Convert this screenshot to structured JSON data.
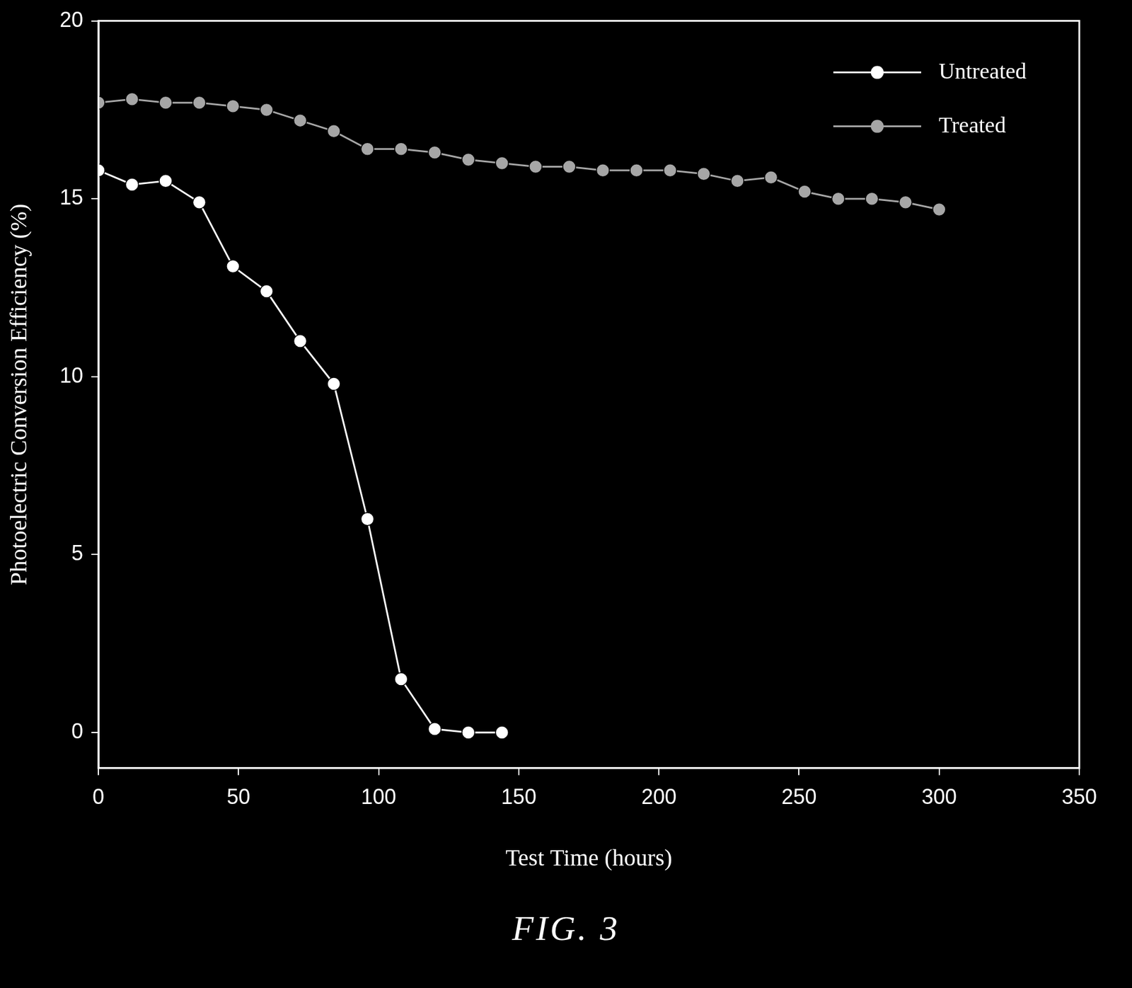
{
  "chart_data": {
    "type": "line",
    "x_label": "Test Time (hours)",
    "y_label": "Photoelectric Conversion Efficiency (%)",
    "caption": "FIG. 3",
    "x": [
      0,
      12,
      24,
      36,
      48,
      60,
      72,
      84,
      96,
      108,
      120,
      132,
      144,
      156,
      168,
      180,
      192,
      204,
      216,
      228,
      240,
      252,
      264,
      276,
      288,
      300
    ],
    "series": [
      {
        "name": "Untreated",
        "color": "#ffffff",
        "marker": "circle",
        "line_style": "solid",
        "values": [
          15.8,
          15.4,
          15.5,
          14.9,
          13.1,
          12.4,
          11.0,
          9.8,
          6.0,
          1.5,
          0.1,
          0.0,
          0.0,
          null,
          null,
          null,
          null,
          null,
          null,
          null,
          null,
          null,
          null,
          null,
          null,
          null
        ]
      },
      {
        "name": "Treated",
        "color": "#a6a6a6",
        "marker": "circle",
        "line_style": "solid",
        "values": [
          17.7,
          17.8,
          17.7,
          17.7,
          17.6,
          17.5,
          17.2,
          16.9,
          16.4,
          16.4,
          16.3,
          16.1,
          16.0,
          15.9,
          15.9,
          15.8,
          15.8,
          15.8,
          15.7,
          15.5,
          15.6,
          15.2,
          15.0,
          15.0,
          14.9,
          14.7
        ]
      }
    ],
    "xlim": [
      0,
      350
    ],
    "xticks": [
      0,
      50,
      100,
      150,
      200,
      250,
      300,
      350
    ],
    "ylim": [
      -1,
      20
    ],
    "yticks": [
      0,
      5,
      10,
      15,
      20
    ],
    "grid": false,
    "legend": "upper right"
  }
}
